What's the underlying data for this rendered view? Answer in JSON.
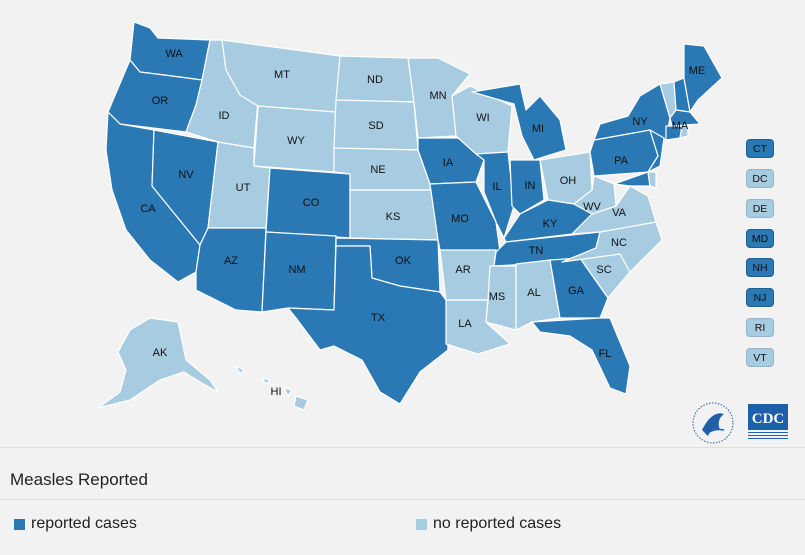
{
  "map": {
    "colors": {
      "reported": "#2a78b4",
      "none": "#a7cce2"
    },
    "states": [
      {
        "abbr": "WA",
        "status": "reported"
      },
      {
        "abbr": "OR",
        "status": "reported"
      },
      {
        "abbr": "CA",
        "status": "reported"
      },
      {
        "abbr": "NV",
        "status": "reported"
      },
      {
        "abbr": "ID",
        "status": "none"
      },
      {
        "abbr": "MT",
        "status": "none"
      },
      {
        "abbr": "WY",
        "status": "none"
      },
      {
        "abbr": "UT",
        "status": "none"
      },
      {
        "abbr": "AZ",
        "status": "reported"
      },
      {
        "abbr": "CO",
        "status": "reported"
      },
      {
        "abbr": "NM",
        "status": "reported"
      },
      {
        "abbr": "ND",
        "status": "none"
      },
      {
        "abbr": "SD",
        "status": "none"
      },
      {
        "abbr": "NE",
        "status": "none"
      },
      {
        "abbr": "KS",
        "status": "none"
      },
      {
        "abbr": "OK",
        "status": "reported"
      },
      {
        "abbr": "TX",
        "status": "reported"
      },
      {
        "abbr": "MN",
        "status": "none"
      },
      {
        "abbr": "IA",
        "status": "reported"
      },
      {
        "abbr": "MO",
        "status": "reported"
      },
      {
        "abbr": "AR",
        "status": "none"
      },
      {
        "abbr": "LA",
        "status": "none"
      },
      {
        "abbr": "WI",
        "status": "none"
      },
      {
        "abbr": "IL",
        "status": "reported"
      },
      {
        "abbr": "MI",
        "status": "reported"
      },
      {
        "abbr": "IN",
        "status": "reported"
      },
      {
        "abbr": "OH",
        "status": "none"
      },
      {
        "abbr": "KY",
        "status": "reported"
      },
      {
        "abbr": "TN",
        "status": "reported"
      },
      {
        "abbr": "MS",
        "status": "none"
      },
      {
        "abbr": "AL",
        "status": "none"
      },
      {
        "abbr": "GA",
        "status": "reported"
      },
      {
        "abbr": "FL",
        "status": "reported"
      },
      {
        "abbr": "SC",
        "status": "none"
      },
      {
        "abbr": "NC",
        "status": "none"
      },
      {
        "abbr": "VA",
        "status": "none"
      },
      {
        "abbr": "WV",
        "status": "none"
      },
      {
        "abbr": "PA",
        "status": "reported"
      },
      {
        "abbr": "NY",
        "status": "reported"
      },
      {
        "abbr": "ME",
        "status": "reported"
      },
      {
        "abbr": "MA",
        "status": "reported"
      },
      {
        "abbr": "AK",
        "status": "none"
      },
      {
        "abbr": "HI",
        "status": "none"
      }
    ],
    "small_states": [
      {
        "abbr": "CT",
        "status": "reported"
      },
      {
        "abbr": "DC",
        "status": "none"
      },
      {
        "abbr": "DE",
        "status": "none"
      },
      {
        "abbr": "MD",
        "status": "reported"
      },
      {
        "abbr": "NH",
        "status": "reported"
      },
      {
        "abbr": "NJ",
        "status": "reported"
      },
      {
        "abbr": "RI",
        "status": "none"
      },
      {
        "abbr": "VT",
        "status": "none"
      }
    ],
    "logos": {
      "hhs_icon": "hhs-eagle-seal-icon",
      "cdc": "CDC"
    }
  },
  "legend": {
    "title": "Measles Reported",
    "items": [
      {
        "label": "reported cases",
        "status": "reported"
      },
      {
        "label": "no reported cases",
        "status": "none"
      }
    ]
  }
}
